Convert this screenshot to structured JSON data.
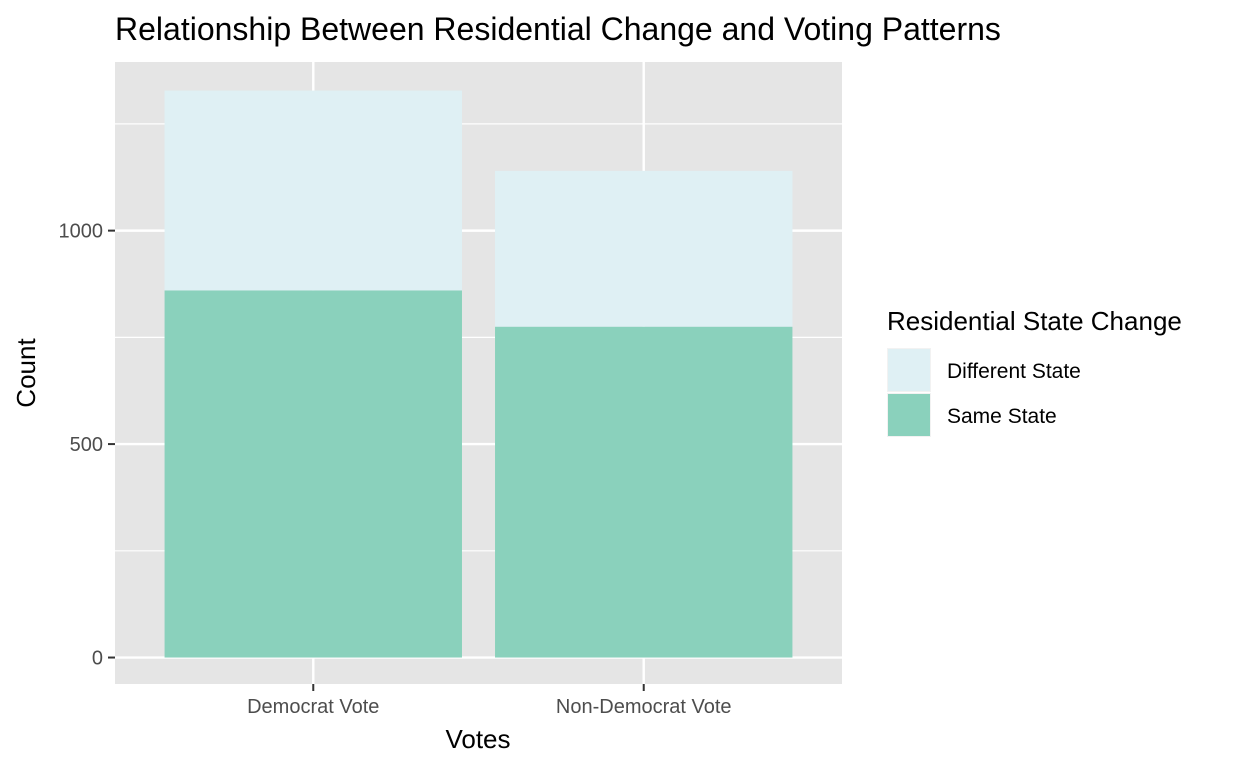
{
  "chart_data": {
    "type": "bar",
    "stacked": true,
    "title": "Relationship Between Residential Change and Voting Patterns",
    "xlabel": "Votes",
    "ylabel": "Count",
    "categories": [
      "Democrat Vote",
      "Non-Democrat Vote"
    ],
    "series": [
      {
        "name": "Same State",
        "values": [
          860,
          775
        ],
        "color": "#8ad1bc"
      },
      {
        "name": "Different State",
        "values": [
          468,
          365
        ],
        "color": "#dff0f4"
      }
    ],
    "ylim": [
      -62,
      1395
    ],
    "yticks": [
      0,
      500,
      1000
    ],
    "grid": true,
    "panel_background": "#e5e5e5",
    "legend": {
      "title": "Residential State Change",
      "position": "right",
      "entries": [
        "Different State",
        "Same State"
      ]
    }
  }
}
